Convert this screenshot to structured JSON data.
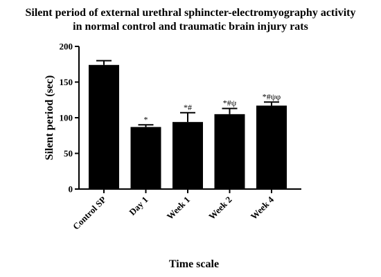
{
  "chart_data": {
    "type": "bar",
    "title": "Silent period of external urethral sphincter-electromyography activity in normal control and traumatic brain injury rats",
    "title_lines": [
      "Silent period of external urethral sphincter-electromyography activity",
      "in normal control and traumatic brain injury rats"
    ],
    "xlabel": "Time scale",
    "ylabel": "Silent period (sec)",
    "ylim": [
      0,
      200
    ],
    "yticks": [
      0,
      50,
      100,
      150,
      200
    ],
    "ytick_labels": [
      "0",
      "50",
      "100",
      "150",
      "200"
    ],
    "categories": [
      "Control SP",
      "Day 1",
      "Week 1",
      "Week 2",
      "Week 4"
    ],
    "values": [
      174,
      87,
      94,
      105,
      117
    ],
    "errors": [
      6,
      3,
      13,
      8,
      5
    ],
    "annotations": [
      "",
      "*",
      "*#",
      "*#ψ",
      "*#ψφ"
    ],
    "bar_color": "#000000",
    "grid": false
  }
}
